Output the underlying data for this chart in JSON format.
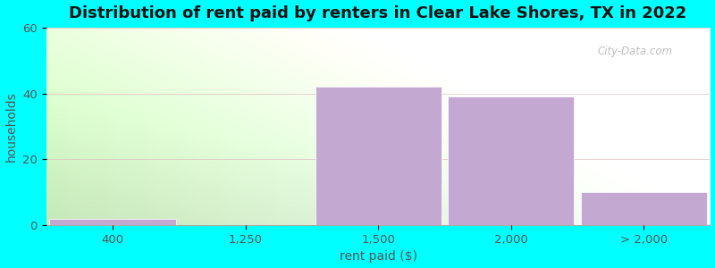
{
  "title": "Distribution of rent paid by renters in Clear Lake Shores, TX in 2022",
  "xlabel": "rent paid ($)",
  "ylabel": "households",
  "categories": [
    "400",
    "1,250",
    "1,500",
    "2,000",
    "> 2,000"
  ],
  "values": [
    2,
    0,
    42,
    39,
    10
  ],
  "bar_color": "#C3A8D1",
  "bar_edgecolor": "#FFFFFF",
  "ylim": [
    0,
    60
  ],
  "yticks": [
    0,
    20,
    40,
    60
  ],
  "background_outer": "#00FFFF",
  "background_inner_topleft": "#C5E8B8",
  "background_inner_topright": "#E8F4E8",
  "background_inner_bottomleft": "#D8F0CC",
  "background_inner_bottomright": "#FFFFFF",
  "title_fontsize": 13,
  "axis_fontsize": 10,
  "tick_fontsize": 9.5,
  "watermark": "City-Data.com",
  "bar_width": 0.95
}
